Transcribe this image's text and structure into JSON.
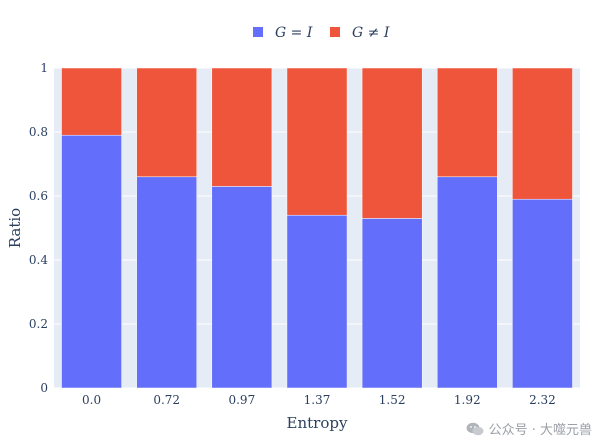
{
  "chart_data": {
    "type": "bar",
    "stacked": true,
    "categories": [
      "0.0",
      "0.72",
      "0.97",
      "1.37",
      "1.52",
      "1.92",
      "2.32"
    ],
    "series": [
      {
        "name": "G = I",
        "values": [
          0.79,
          0.66,
          0.63,
          0.54,
          0.53,
          0.66,
          0.59
        ]
      },
      {
        "name": "G ≠ I",
        "values": [
          0.21,
          0.34,
          0.37,
          0.46,
          0.47,
          0.34,
          0.41
        ]
      }
    ],
    "colors": {
      "G = I": "#636efa",
      "G ≠ I": "#ef553b"
    },
    "xlabel": "Entropy",
    "ylabel": "Ratio",
    "ylim": [
      0,
      1
    ],
    "yticks": [
      "0",
      "0.2",
      "0.4",
      "0.6",
      "0.8",
      "1"
    ],
    "grid": true,
    "legend_position": "top-center"
  },
  "watermark": {
    "text": "公众号 · 大噬元兽",
    "icon": "wechat-icon"
  }
}
